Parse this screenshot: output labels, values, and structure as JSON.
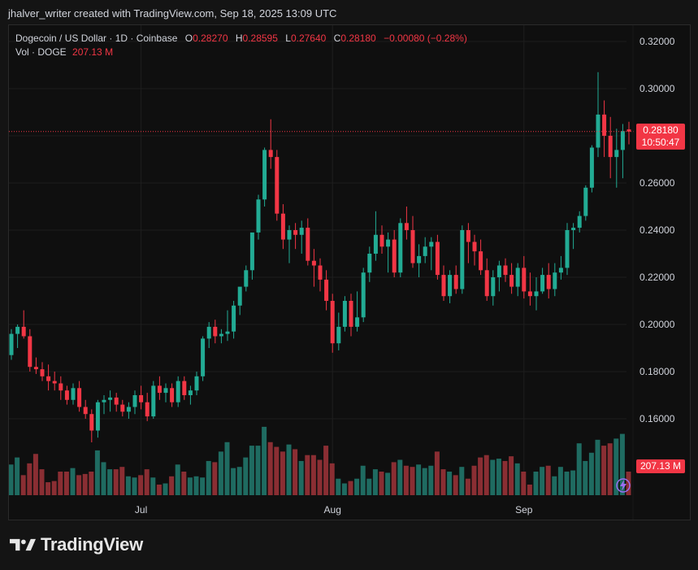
{
  "header": {
    "attribution": "jhalver_writer created with TradingView.com, Sep 18, 2025 13:09 UTC"
  },
  "legend": {
    "symbol": "Dogecoin / US Dollar · 1D · Coinbase",
    "open_key": "O",
    "open": "0.28270",
    "high_key": "H",
    "high": "0.28595",
    "low_key": "L",
    "low": "0.27640",
    "close_key": "C",
    "close": "0.28180",
    "change": "−0.00080 (−0.28%)",
    "vol_label": "Vol · DOGE",
    "vol_value": "207.13 M"
  },
  "price_tag": {
    "price": "0.28180",
    "countdown": "10:50:47"
  },
  "vol_tag": "207.13 M",
  "brand": {
    "name": "TradingView"
  },
  "colors": {
    "up": "#22ab94",
    "down": "#f23645",
    "vol_up": "#1f6b61",
    "vol_down": "#8a2e33",
    "grid": "#1e1e1e",
    "background": "#0f0f0f"
  },
  "chart_data": {
    "type": "candlestick",
    "y_axis": {
      "min": 0.14,
      "max": 0.33,
      "ticks": [
        0.16,
        0.18,
        0.2,
        0.22,
        0.24,
        0.26,
        0.28,
        0.3,
        0.32
      ],
      "tick_labels": [
        "0.16000",
        "0.18000",
        "0.20000",
        "0.22000",
        "0.24000",
        "0.26000",
        "0.28000",
        "0.30000",
        "0.32000"
      ],
      "side": "right"
    },
    "x_axis": {
      "labels": [
        {
          "text": "Jul",
          "index": 21
        },
        {
          "text": "Aug",
          "index": 52
        },
        {
          "text": "Sep",
          "index": 83
        }
      ]
    },
    "last_price": 0.2818,
    "candles": [
      [
        0.187,
        0.198,
        0.185,
        0.196
      ],
      [
        0.196,
        0.2,
        0.19,
        0.199
      ],
      [
        0.199,
        0.206,
        0.194,
        0.195
      ],
      [
        0.195,
        0.198,
        0.18,
        0.182
      ],
      [
        0.182,
        0.186,
        0.179,
        0.181
      ],
      [
        0.181,
        0.184,
        0.176,
        0.178
      ],
      [
        0.178,
        0.183,
        0.172,
        0.176
      ],
      [
        0.176,
        0.18,
        0.172,
        0.175
      ],
      [
        0.175,
        0.178,
        0.168,
        0.172
      ],
      [
        0.172,
        0.174,
        0.166,
        0.168
      ],
      [
        0.168,
        0.175,
        0.166,
        0.173
      ],
      [
        0.173,
        0.176,
        0.163,
        0.165
      ],
      [
        0.165,
        0.168,
        0.16,
        0.162
      ],
      [
        0.162,
        0.164,
        0.15,
        0.155
      ],
      [
        0.155,
        0.168,
        0.152,
        0.167
      ],
      [
        0.167,
        0.17,
        0.162,
        0.168
      ],
      [
        0.168,
        0.172,
        0.163,
        0.169
      ],
      [
        0.169,
        0.171,
        0.163,
        0.166
      ],
      [
        0.166,
        0.168,
        0.161,
        0.163
      ],
      [
        0.163,
        0.167,
        0.16,
        0.165
      ],
      [
        0.165,
        0.172,
        0.162,
        0.17
      ],
      [
        0.17,
        0.174,
        0.164,
        0.167
      ],
      [
        0.167,
        0.171,
        0.159,
        0.161
      ],
      [
        0.161,
        0.176,
        0.16,
        0.174
      ],
      [
        0.174,
        0.178,
        0.168,
        0.171
      ],
      [
        0.171,
        0.175,
        0.167,
        0.173
      ],
      [
        0.173,
        0.175,
        0.165,
        0.167
      ],
      [
        0.167,
        0.178,
        0.165,
        0.176
      ],
      [
        0.176,
        0.178,
        0.168,
        0.17
      ],
      [
        0.17,
        0.174,
        0.166,
        0.172
      ],
      [
        0.172,
        0.18,
        0.17,
        0.178
      ],
      [
        0.178,
        0.195,
        0.176,
        0.194
      ],
      [
        0.194,
        0.201,
        0.19,
        0.199
      ],
      [
        0.199,
        0.202,
        0.192,
        0.195
      ],
      [
        0.195,
        0.198,
        0.192,
        0.196
      ],
      [
        0.196,
        0.206,
        0.193,
        0.197
      ],
      [
        0.197,
        0.21,
        0.194,
        0.208
      ],
      [
        0.208,
        0.215,
        0.204,
        0.216
      ],
      [
        0.216,
        0.225,
        0.214,
        0.223
      ],
      [
        0.223,
        0.238,
        0.219,
        0.239
      ],
      [
        0.239,
        0.255,
        0.236,
        0.253
      ],
      [
        0.253,
        0.275,
        0.25,
        0.274
      ],
      [
        0.274,
        0.287,
        0.266,
        0.271
      ],
      [
        0.271,
        0.274,
        0.244,
        0.247
      ],
      [
        0.247,
        0.251,
        0.232,
        0.236
      ],
      [
        0.236,
        0.242,
        0.226,
        0.24
      ],
      [
        0.24,
        0.243,
        0.232,
        0.238
      ],
      [
        0.238,
        0.244,
        0.23,
        0.241
      ],
      [
        0.241,
        0.245,
        0.225,
        0.227
      ],
      [
        0.227,
        0.232,
        0.216,
        0.225
      ],
      [
        0.225,
        0.228,
        0.214,
        0.219
      ],
      [
        0.219,
        0.223,
        0.206,
        0.21
      ],
      [
        0.21,
        0.213,
        0.188,
        0.192
      ],
      [
        0.192,
        0.205,
        0.189,
        0.199
      ],
      [
        0.199,
        0.212,
        0.197,
        0.21
      ],
      [
        0.21,
        0.213,
        0.195,
        0.199
      ],
      [
        0.199,
        0.214,
        0.197,
        0.203
      ],
      [
        0.203,
        0.224,
        0.201,
        0.222
      ],
      [
        0.222,
        0.233,
        0.218,
        0.23
      ],
      [
        0.23,
        0.248,
        0.227,
        0.238
      ],
      [
        0.238,
        0.242,
        0.23,
        0.233
      ],
      [
        0.233,
        0.239,
        0.222,
        0.236
      ],
      [
        0.236,
        0.24,
        0.22,
        0.222
      ],
      [
        0.222,
        0.245,
        0.22,
        0.243
      ],
      [
        0.243,
        0.25,
        0.236,
        0.24
      ],
      [
        0.24,
        0.246,
        0.224,
        0.226
      ],
      [
        0.226,
        0.234,
        0.22,
        0.229
      ],
      [
        0.229,
        0.237,
        0.226,
        0.233
      ],
      [
        0.233,
        0.237,
        0.223,
        0.235
      ],
      [
        0.235,
        0.238,
        0.219,
        0.221
      ],
      [
        0.221,
        0.225,
        0.21,
        0.212
      ],
      [
        0.212,
        0.223,
        0.209,
        0.221
      ],
      [
        0.221,
        0.225,
        0.213,
        0.215
      ],
      [
        0.215,
        0.242,
        0.213,
        0.24
      ],
      [
        0.24,
        0.243,
        0.226,
        0.235
      ],
      [
        0.235,
        0.238,
        0.225,
        0.231
      ],
      [
        0.231,
        0.236,
        0.221,
        0.223
      ],
      [
        0.223,
        0.228,
        0.21,
        0.212
      ],
      [
        0.212,
        0.223,
        0.208,
        0.22
      ],
      [
        0.22,
        0.227,
        0.214,
        0.225
      ],
      [
        0.225,
        0.228,
        0.218,
        0.221
      ],
      [
        0.221,
        0.226,
        0.213,
        0.216
      ],
      [
        0.216,
        0.226,
        0.212,
        0.224
      ],
      [
        0.224,
        0.229,
        0.211,
        0.214
      ],
      [
        0.214,
        0.222,
        0.208,
        0.212
      ],
      [
        0.212,
        0.22,
        0.206,
        0.214
      ],
      [
        0.214,
        0.224,
        0.213,
        0.221
      ],
      [
        0.221,
        0.226,
        0.211,
        0.215
      ],
      [
        0.215,
        0.226,
        0.212,
        0.222
      ],
      [
        0.222,
        0.229,
        0.219,
        0.224
      ],
      [
        0.224,
        0.243,
        0.221,
        0.24
      ],
      [
        0.24,
        0.243,
        0.232,
        0.241
      ],
      [
        0.241,
        0.248,
        0.239,
        0.246
      ],
      [
        0.246,
        0.259,
        0.244,
        0.258
      ],
      [
        0.258,
        0.276,
        0.256,
        0.275
      ],
      [
        0.275,
        0.307,
        0.271,
        0.289
      ],
      [
        0.289,
        0.295,
        0.271,
        0.28
      ],
      [
        0.28,
        0.288,
        0.262,
        0.271
      ],
      [
        0.271,
        0.283,
        0.258,
        0.274
      ],
      [
        0.274,
        0.285,
        0.262,
        0.282
      ],
      [
        0.2827,
        0.28595,
        0.2764,
        0.2818
      ]
    ],
    "volume_pct": [
      0.26,
      0.32,
      0.17,
      0.27,
      0.35,
      0.22,
      0.11,
      0.12,
      0.2,
      0.2,
      0.23,
      0.17,
      0.18,
      0.2,
      0.38,
      0.28,
      0.22,
      0.22,
      0.24,
      0.16,
      0.15,
      0.17,
      0.22,
      0.15,
      0.09,
      0.1,
      0.16,
      0.26,
      0.2,
      0.15,
      0.16,
      0.15,
      0.29,
      0.28,
      0.37,
      0.45,
      0.23,
      0.24,
      0.32,
      0.42,
      0.42,
      0.58,
      0.45,
      0.41,
      0.37,
      0.43,
      0.39,
      0.29,
      0.34,
      0.34,
      0.3,
      0.42,
      0.27,
      0.14,
      0.1,
      0.12,
      0.14,
      0.25,
      0.14,
      0.22,
      0.2,
      0.19,
      0.28,
      0.3,
      0.25,
      0.24,
      0.26,
      0.23,
      0.25,
      0.37,
      0.22,
      0.2,
      0.17,
      0.24,
      0.14,
      0.25,
      0.32,
      0.34,
      0.3,
      0.31,
      0.29,
      0.33,
      0.27,
      0.2,
      0.09,
      0.2,
      0.24,
      0.25,
      0.16,
      0.24,
      0.2,
      0.21,
      0.44,
      0.29,
      0.36,
      0.47,
      0.42,
      0.44,
      0.48,
      0.52,
      0.2
    ]
  }
}
